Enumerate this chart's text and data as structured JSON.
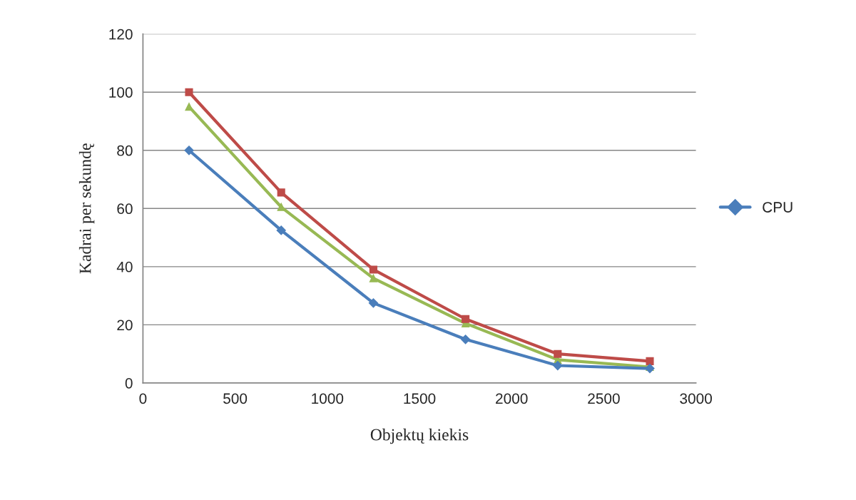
{
  "chart_data": {
    "type": "line",
    "xlabel": "Objektų kiekis",
    "ylabel": "Kadrai per sekundę",
    "x": [
      250,
      750,
      1250,
      1750,
      2250,
      2750
    ],
    "series": [
      {
        "name": "CPU",
        "color": "#4a7ebb",
        "marker": "diamond",
        "values": [
          80,
          52.5,
          27.5,
          15,
          6,
          5
        ]
      },
      {
        "color": "#be4b48",
        "marker": "square",
        "values": [
          100,
          65.5,
          39,
          22,
          10,
          7.5
        ]
      },
      {
        "color": "#98b954",
        "marker": "triangle",
        "values": [
          95,
          60.5,
          36,
          20.5,
          8,
          5.5
        ]
      }
    ],
    "xlim": [
      0,
      3000
    ],
    "xticks": [
      0,
      500,
      1000,
      1500,
      2000,
      2500,
      3000
    ],
    "ylim": [
      0,
      120
    ],
    "yticks": [
      0,
      20,
      40,
      60,
      80,
      100,
      120
    ],
    "grid": "y",
    "legend": "right",
    "line_style": "solid"
  }
}
